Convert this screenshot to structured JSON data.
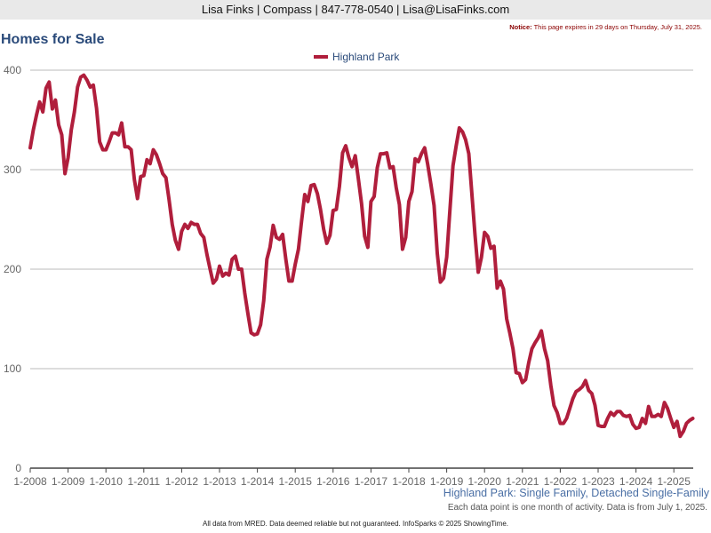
{
  "header": {
    "contact_line": "Lisa Finks | Compass | 847-778-0540 | Lisa@LisaFinks.com"
  },
  "notice": {
    "label": "Notice:",
    "text": "This page expires in 29 days on Thursday, July 31, 2025."
  },
  "page_title": "Homes for Sale",
  "subtitle": "Highland Park: Single Family, Detached Single-Family",
  "caption": "Each data point is one month of activity. Data is from July 1, 2025.",
  "footer": "All data from MRED. Data deemed reliable but not guaranteed. InfoSparks © 2025 ShowingTime.",
  "colors": {
    "series": "#b01e3c",
    "grid": "#bbbbbb",
    "axis": "#444444"
  },
  "chart_data": {
    "type": "line",
    "xlabel": "",
    "ylabel": "",
    "ylim": [
      0,
      400
    ],
    "y_ticks": [
      0,
      100,
      200,
      300,
      400
    ],
    "x_ticks": [
      "1-2008",
      "1-2009",
      "1-2010",
      "1-2011",
      "1-2012",
      "1-2013",
      "1-2014",
      "1-2015",
      "1-2016",
      "1-2017",
      "1-2018",
      "1-2019",
      "1-2020",
      "1-2021",
      "1-2022",
      "1-2023",
      "1-2024",
      "1-2025"
    ],
    "grid": "horizontal",
    "legend_position": "top-center",
    "start_month": "1-2008",
    "series": [
      {
        "name": "Highland Park",
        "values": [
          322,
          340,
          355,
          368,
          358,
          382,
          388,
          361,
          370,
          345,
          335,
          296,
          312,
          340,
          358,
          383,
          393,
          395,
          390,
          383,
          385,
          362,
          328,
          320,
          320,
          328,
          337,
          337,
          335,
          347,
          323,
          323,
          320,
          290,
          271,
          293,
          294,
          310,
          306,
          320,
          315,
          306,
          296,
          292,
          270,
          245,
          229,
          220,
          238,
          245,
          241,
          247,
          245,
          245,
          236,
          232,
          215,
          200,
          186,
          190,
          203,
          193,
          196,
          194,
          210,
          213,
          200,
          200,
          176,
          155,
          136,
          134,
          135,
          144,
          168,
          210,
          222,
          244,
          232,
          230,
          235,
          210,
          188,
          188,
          205,
          220,
          248,
          275,
          268,
          284,
          285,
          276,
          260,
          240,
          226,
          234,
          259,
          260,
          283,
          317,
          324,
          312,
          303,
          314,
          291,
          266,
          233,
          222,
          268,
          273,
          302,
          316,
          316,
          317,
          302,
          303,
          282,
          265,
          220,
          232,
          268,
          278,
          311,
          308,
          316,
          322,
          305,
          285,
          264,
          216,
          187,
          191,
          212,
          259,
          304,
          324,
          342,
          338,
          330,
          316,
          275,
          234,
          197,
          212,
          237,
          233,
          221,
          223,
          181,
          188,
          180,
          150,
          136,
          120,
          96,
          95,
          86,
          89,
          106,
          120,
          126,
          131,
          138,
          120,
          108,
          83,
          63,
          56,
          45,
          45,
          50,
          60,
          70,
          77,
          79,
          82,
          88,
          78,
          75,
          63,
          43,
          42,
          42,
          50,
          56,
          53,
          57,
          57,
          53,
          52,
          53,
          44,
          40,
          41,
          50,
          45,
          62,
          52,
          52,
          54,
          52,
          66,
          60,
          50,
          41,
          47,
          32,
          37,
          45,
          48,
          50
        ]
      }
    ]
  }
}
